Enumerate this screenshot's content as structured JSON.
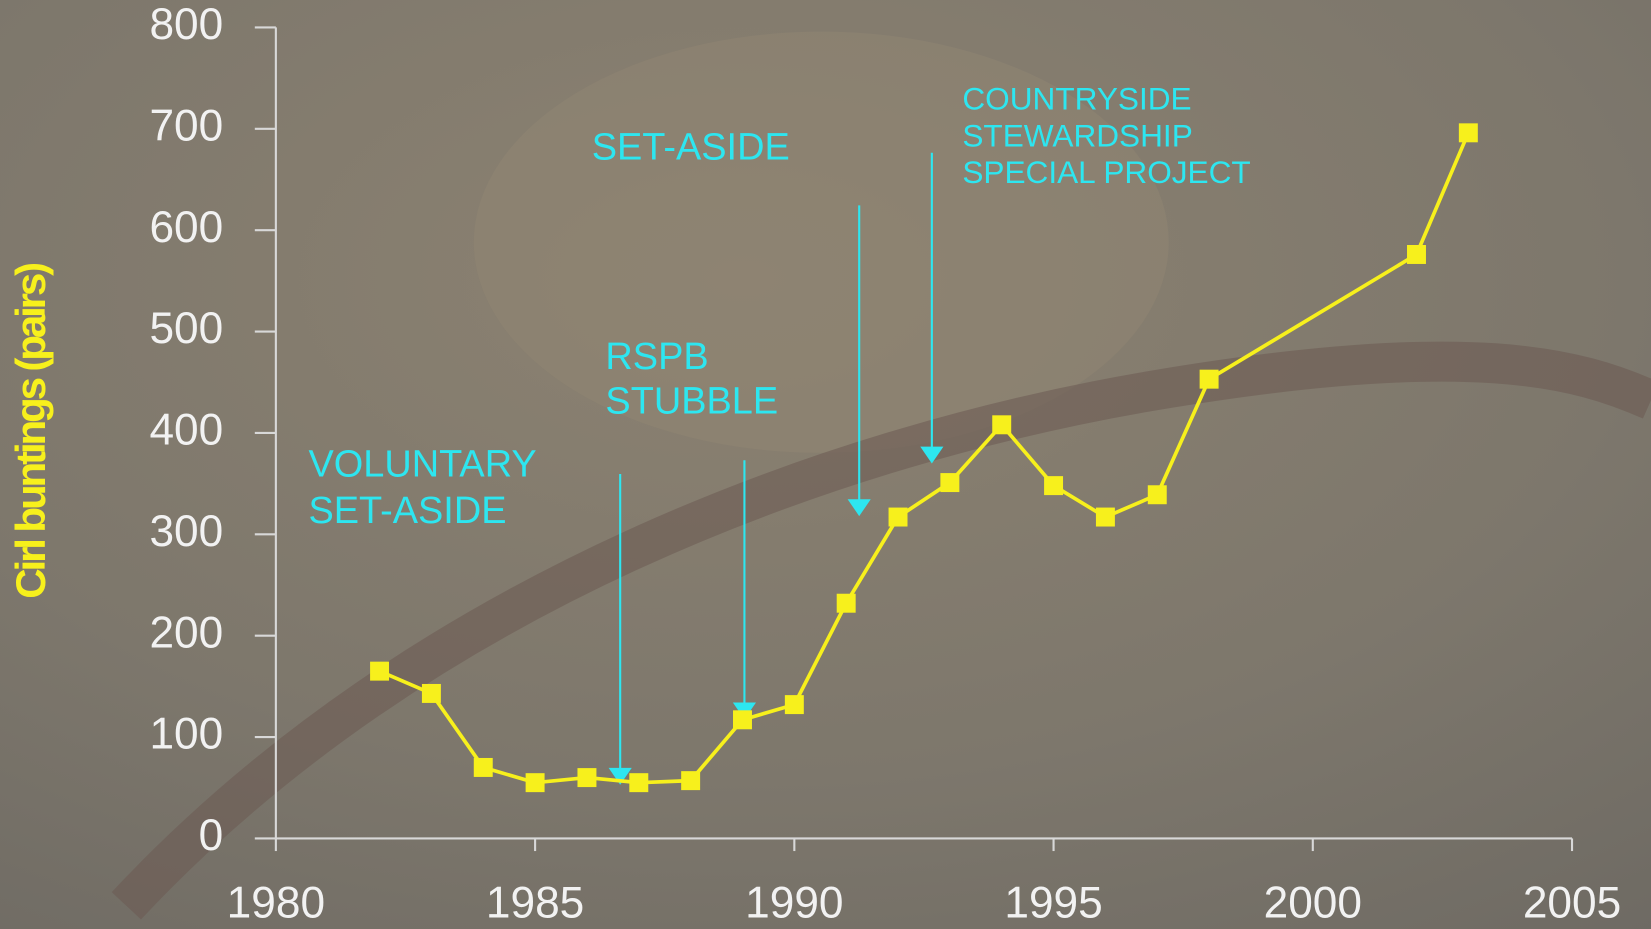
{
  "chart_data": {
    "type": "line",
    "ylabel": "Cirl buntings (pairs)",
    "x": [
      1982,
      1983,
      1984,
      1985,
      1986,
      1987,
      1988,
      1989,
      1990,
      1991,
      1992,
      1993,
      1994,
      1995,
      1996,
      1997,
      1998,
      2002,
      2003
    ],
    "series": [
      {
        "color": "#f7f01c",
        "values": [
          165,
          143,
          70,
          55,
          60,
          55,
          57,
          117,
          132,
          232,
          317,
          351,
          408,
          348,
          317,
          339,
          453,
          576,
          696
        ]
      }
    ],
    "xlim": [
      1980,
      2005
    ],
    "xticks": [
      1980,
      1985,
      1990,
      1995,
      2000,
      2005
    ],
    "ylim": [
      0,
      800
    ],
    "yticks": [
      0,
      100,
      200,
      300,
      400,
      500,
      600,
      700,
      800
    ],
    "annotations": [
      {
        "lines": [
          "VOLUNTARY",
          "SET-ASIDE"
        ]
      },
      {
        "lines": [
          "RSPB",
          "STUBBLE"
        ]
      },
      {
        "lines": [
          "SET-ASIDE"
        ]
      },
      {
        "lines": [
          "COUNTRYSIDE",
          "STEWARDSHIP",
          "SPECIAL PROJECT"
        ]
      }
    ],
    "annotation_color": "#2de6f0"
  }
}
